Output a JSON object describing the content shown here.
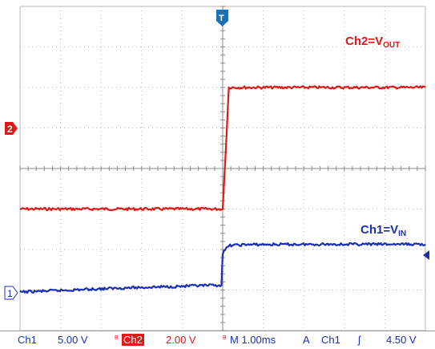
{
  "chart_data": {
    "type": "line",
    "series": [
      {
        "name": "Ch2=VOUT",
        "color": "#e01818",
        "x": [
          0,
          2.5,
          5.0,
          5.08,
          5.15,
          7.5,
          10
        ],
        "y": [
          -1.0,
          -1.0,
          -1.0,
          0.5,
          2.0,
          2.0,
          2.0
        ]
      },
      {
        "name": "Ch1=VIN",
        "color": "#1b2fb4",
        "x": [
          0,
          2.5,
          4.97,
          5.0,
          5.15,
          5.6,
          7.5,
          10
        ],
        "y": [
          -3.05,
          -2.95,
          -2.88,
          -2.1,
          -1.9,
          -1.88,
          -1.87,
          -1.87
        ]
      }
    ],
    "xlim": [
      0,
      10
    ],
    "ylim": [
      -4,
      4
    ],
    "grid": true,
    "labels": {
      "ch2": {
        "main": "Ch2=V",
        "sub": "OUT"
      },
      "ch1": {
        "main": "Ch1=V",
        "sub": "IN"
      }
    },
    "markers": {
      "ch2_ground": "2",
      "ch1_ground": "1",
      "trigger": "T"
    }
  },
  "status_bar": {
    "ch1_name": "Ch1",
    "ch1_scale": "5.00 V",
    "ch2_prefix": "B",
    "ch2_name": "Ch2",
    "ch2_scale": "2.00 V",
    "time_prefix": "B",
    "time_scale": "M 1.00ms",
    "mode": "A",
    "trig_source": "Ch1",
    "trig_slope": "ʃ",
    "trig_level": "4.50 V"
  },
  "colors": {
    "ch1": "#1b2fb4",
    "ch2": "#e01818",
    "grid": "#b9b9b9",
    "trigger": "#1b6fb4"
  }
}
